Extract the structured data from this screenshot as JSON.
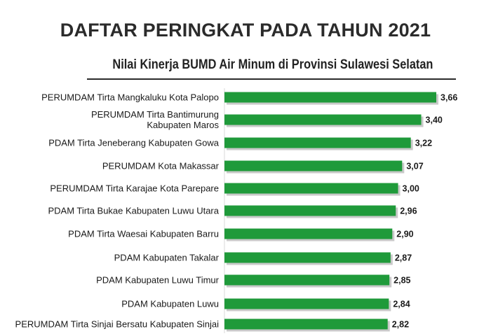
{
  "header": {
    "title": "DAFTAR PERINGKAT PADA TAHUN 2021",
    "subtitle": "Nilai Kinerja BUMD Air Minum di Provinsi Sulawesi Selatan"
  },
  "colors": {
    "bar": "#1f9a3a",
    "bar_shadow": "#c9c9c9"
  },
  "chart_data": {
    "type": "bar",
    "orientation": "horizontal",
    "title": "DAFTAR PERINGKAT PADA TAHUN 2021",
    "subtitle": "Nilai Kinerja BUMD Air Minum di Provinsi Sulawesi Selatan",
    "xlabel": "",
    "ylabel": "",
    "grid": false,
    "categories": [
      [
        "PERUMDAM Tirta Mangkaluku Kota Palopo"
      ],
      [
        "PERUMDAM Tirta Bantimurung",
        "Kabupaten Maros"
      ],
      [
        "PDAM Tirta Jeneberang Kabupaten Gowa"
      ],
      [
        "PERUMDAM Kota Makassar"
      ],
      [
        "PERUMDAM Tirta Karajae Kota Parepare"
      ],
      [
        "PDAM Tirta Bukae Kabupaten Luwu Utara"
      ],
      [
        "PDAM Tirta Waesai Kabupaten Barru"
      ],
      [
        "PDAM Kabupaten Takalar"
      ],
      [
        "PDAM Kabupaten Luwu Timur"
      ],
      [
        "PDAM Kabupaten Luwu"
      ],
      [
        "PERUMDAM Tirta Sinjai Bersatu Kabupaten Sinjai"
      ]
    ],
    "values": [
      3.66,
      3.4,
      3.22,
      3.07,
      3.0,
      2.96,
      2.9,
      2.87,
      2.85,
      2.84,
      2.82
    ],
    "value_labels": [
      "3,66",
      "3,40",
      "3,22",
      "3,07",
      "3,00",
      "2,96",
      "2,90",
      "2,87",
      "2,85",
      "2,84",
      "2,82"
    ]
  }
}
